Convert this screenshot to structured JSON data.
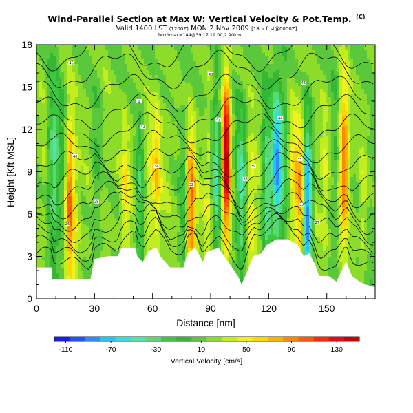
{
  "header": {
    "title": "Wind-Parallel Section at Max W: Vertical Velocity & Pot.Temp.",
    "title_suffix": "(C)",
    "valid_prefix": "Valid 1400 LST",
    "valid_z": "(1200Z)",
    "valid_date": "MON 2 Nov 2009",
    "valid_suffix": "[18hr fcst@0000Z]",
    "coords_line": "box/imax=144@39.17,19.00,2.90km"
  },
  "chart_data": {
    "type": "heatmap",
    "xlabel": "Distance [nm]",
    "ylabel": "Height [Kft MSL]",
    "xlim": [
      0,
      175
    ],
    "ylim": [
      0,
      18
    ],
    "x_ticks": [
      "0",
      "30",
      "60",
      "90",
      "120",
      "150"
    ],
    "y_ticks": [
      "0",
      "3",
      "6",
      "9",
      "12",
      "15",
      "18"
    ],
    "colorbar": {
      "title": "Vertical Velocity [cm/s]",
      "min": -120,
      "max": 150,
      "labels": [
        "-110",
        "-70",
        "-30",
        "10",
        "50",
        "90",
        "130"
      ],
      "colors": [
        "#1a1aff",
        "#1f53ff",
        "#2a8cff",
        "#20c4ff",
        "#30e0e0",
        "#4ce6a8",
        "#58d878",
        "#3cc83c",
        "#34b834",
        "#5ac83a",
        "#8edc2a",
        "#c2ee20",
        "#f0f020",
        "#ffd800",
        "#ffb000",
        "#ff8800",
        "#ff5a00",
        "#ff2a00",
        "#e01010",
        "#c80000"
      ]
    },
    "columns": [
      {
        "x": 3,
        "w": 0.1
      },
      {
        "x": 9,
        "w": -0.55
      },
      {
        "x": 14,
        "w": -0.25
      },
      {
        "x": 17,
        "w": 0.85
      },
      {
        "x": 21,
        "w": 0.15
      },
      {
        "x": 26,
        "w": 0.05
      },
      {
        "x": 31,
        "w": -0.15
      },
      {
        "x": 36,
        "w": 0.1
      },
      {
        "x": 41,
        "w": 0.05
      },
      {
        "x": 46,
        "w": 0.35
      },
      {
        "x": 51,
        "w": 0.05
      },
      {
        "x": 54,
        "w": -0.45
      },
      {
        "x": 57,
        "w": 0.3
      },
      {
        "x": 62,
        "w": 0.45
      },
      {
        "x": 67,
        "w": 0.1
      },
      {
        "x": 72,
        "w": 0.05
      },
      {
        "x": 76,
        "w": -0.25
      },
      {
        "x": 80,
        "w": 0.8
      },
      {
        "x": 85,
        "w": 0.05
      },
      {
        "x": 89,
        "w": 0.25
      },
      {
        "x": 93,
        "w": -0.6
      },
      {
        "x": 98,
        "w": 1.3
      },
      {
        "x": 102,
        "w": -0.1
      },
      {
        "x": 106,
        "w": -0.55
      },
      {
        "x": 111,
        "w": 0.35
      },
      {
        "x": 115,
        "w": 0.1
      },
      {
        "x": 119,
        "w": -0.55
      },
      {
        "x": 124,
        "w": -0.85
      },
      {
        "x": 128,
        "w": -0.35
      },
      {
        "x": 132,
        "w": 0.3
      },
      {
        "x": 136,
        "w": 0.6
      },
      {
        "x": 140,
        "w": -1.0
      },
      {
        "x": 144,
        "w": 0.15
      },
      {
        "x": 149,
        "w": 0.25
      },
      {
        "x": 154,
        "w": -0.15
      },
      {
        "x": 159,
        "w": 0.75
      },
      {
        "x": 164,
        "w": 0.05
      },
      {
        "x": 169,
        "w": 0.2
      },
      {
        "x": 173,
        "w": -0.1
      }
    ],
    "terrain": [
      [
        0,
        2.2
      ],
      [
        8,
        2.2
      ],
      [
        8,
        1.4
      ],
      [
        18,
        1.4
      ],
      [
        28,
        1.4
      ],
      [
        30,
        2.8
      ],
      [
        37,
        3.0
      ],
      [
        42,
        3.0
      ],
      [
        44,
        3.6
      ],
      [
        51,
        3.6
      ],
      [
        52,
        3.0
      ],
      [
        55,
        2.6
      ],
      [
        58,
        3.4
      ],
      [
        62,
        3.6
      ],
      [
        64,
        3.0
      ],
      [
        69,
        2.2
      ],
      [
        76,
        2.2
      ],
      [
        78,
        3.2
      ],
      [
        82,
        3.6
      ],
      [
        86,
        2.6
      ],
      [
        88,
        3.3
      ],
      [
        94,
        3.6
      ],
      [
        99,
        2.6
      ],
      [
        104,
        1.6
      ],
      [
        106,
        1.0
      ],
      [
        108,
        1.6
      ],
      [
        112,
        3.0
      ],
      [
        116,
        3.2
      ],
      [
        119,
        3.8
      ],
      [
        124,
        4.2
      ],
      [
        130,
        4.2
      ],
      [
        135,
        3.8
      ],
      [
        138,
        3.0
      ],
      [
        141,
        3.2
      ],
      [
        144,
        2.4
      ],
      [
        146,
        1.6
      ],
      [
        151,
        1.6
      ],
      [
        155,
        1.2
      ],
      [
        160,
        2.6
      ],
      [
        163,
        1.6
      ],
      [
        167,
        1.2
      ],
      [
        170,
        1.0
      ],
      [
        175,
        0.8
      ]
    ],
    "contour_labels": [
      {
        "x": 18,
        "y": 16.7,
        "text": "45"
      },
      {
        "x": 53,
        "y": 14.0,
        "text": "1"
      },
      {
        "x": 90,
        "y": 15.9,
        "text": "48"
      },
      {
        "x": 138,
        "y": 15.3,
        "text": "45"
      },
      {
        "x": 55,
        "y": 12.2,
        "text": "42"
      },
      {
        "x": 94,
        "y": 12.7,
        "text": "43"
      },
      {
        "x": 126,
        "y": 12.8,
        "text": "44"
      },
      {
        "x": 20,
        "y": 10.1,
        "text": "40"
      },
      {
        "x": 62,
        "y": 9.4,
        "text": "34"
      },
      {
        "x": 112,
        "y": 9.4,
        "text": "39"
      },
      {
        "x": 136,
        "y": 9.9,
        "text": "35"
      },
      {
        "x": 80,
        "y": 8.1,
        "text": "32"
      },
      {
        "x": 108,
        "y": 8.5,
        "text": "35"
      },
      {
        "x": 31,
        "y": 6.9,
        "text": "28"
      },
      {
        "x": 137,
        "y": 6.7,
        "text": "33"
      },
      {
        "x": 16,
        "y": 5.3,
        "text": "26"
      },
      {
        "x": 145,
        "y": 5.4,
        "text": "27"
      }
    ]
  }
}
